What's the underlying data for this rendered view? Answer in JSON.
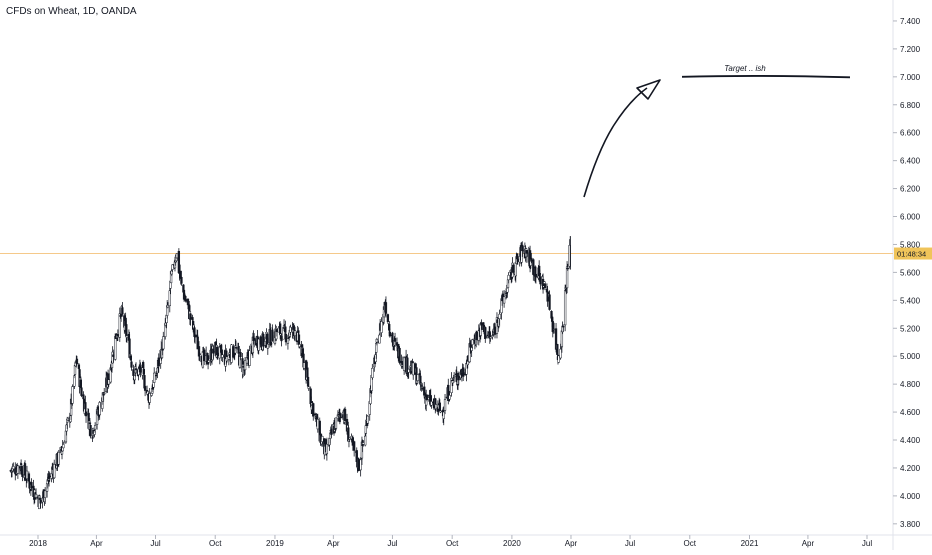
{
  "header": {
    "title": "CFDs on Wheat, 1D, OANDA"
  },
  "price_label": {
    "time": "01:48:34",
    "value": 5.735,
    "color": "#f0c45a",
    "line_color": "#f5c98a"
  },
  "annotation": {
    "text": "Target .. ish",
    "level": 7.0
  },
  "chart_data": {
    "type": "candlestick",
    "title": "CFDs on Wheat, 1D, OANDA",
    "ylim": [
      3.72,
      7.55
    ],
    "yticks": [
      3.8,
      4.0,
      4.2,
      4.4,
      4.6,
      4.8,
      5.0,
      5.2,
      5.4,
      5.6,
      5.8,
      6.0,
      6.2,
      6.4,
      6.6,
      6.8,
      7.0,
      7.2,
      7.4
    ],
    "ytick_labels": [
      "3.800",
      "4.000",
      "4.200",
      "4.400",
      "4.600",
      "4.800",
      "5.000",
      "5.200",
      "5.400",
      "5.600",
      "5.800",
      "6.000",
      "6.200",
      "6.400",
      "6.600",
      "6.800",
      "7.000",
      "7.200",
      "7.400"
    ],
    "xtick_labels": [
      "2018",
      "Apr",
      "Jul",
      "Oct",
      "2019",
      "Apr",
      "Jul",
      "Oct",
      "2020",
      "Apr",
      "Jul",
      "Oct",
      "2021",
      "Apr",
      "Jul"
    ],
    "xticks": [
      "2018-01",
      "2018-04",
      "2018-07",
      "2018-10",
      "2019-01",
      "2019-04",
      "2019-07",
      "2019-10",
      "2020-01",
      "2020-04",
      "2020-07",
      "2020-10",
      "2021-01",
      "2021-04",
      "2021-07"
    ],
    "price_path": [
      [
        "2017-11-20",
        4.18
      ],
      [
        "2017-12-05",
        4.22
      ],
      [
        "2017-12-20",
        4.08
      ],
      [
        "2018-01-05",
        3.95
      ],
      [
        "2018-01-20",
        4.15
      ],
      [
        "2018-02-05",
        4.3
      ],
      [
        "2018-02-20",
        4.6
      ],
      [
        "2018-03-01",
        4.98
      ],
      [
        "2018-03-10",
        4.72
      ],
      [
        "2018-03-25",
        4.45
      ],
      [
        "2018-04-05",
        4.62
      ],
      [
        "2018-04-20",
        4.85
      ],
      [
        "2018-05-01",
        5.15
      ],
      [
        "2018-05-10",
        5.3
      ],
      [
        "2018-05-20",
        5.1
      ],
      [
        "2018-05-28",
        4.88
      ],
      [
        "2018-06-10",
        4.9
      ],
      [
        "2018-06-20",
        4.7
      ],
      [
        "2018-07-01",
        4.85
      ],
      [
        "2018-07-15",
        5.15
      ],
      [
        "2018-07-25",
        5.55
      ],
      [
        "2018-08-02",
        5.75
      ],
      [
        "2018-08-10",
        5.5
      ],
      [
        "2018-08-20",
        5.35
      ],
      [
        "2018-09-01",
        5.12
      ],
      [
        "2018-09-15",
        4.95
      ],
      [
        "2018-10-01",
        5.05
      ],
      [
        "2018-10-15",
        4.98
      ],
      [
        "2018-11-01",
        5.05
      ],
      [
        "2018-11-15",
        4.9
      ],
      [
        "2018-12-01",
        5.12
      ],
      [
        "2018-12-15",
        5.1
      ],
      [
        "2019-01-05",
        5.18
      ],
      [
        "2019-01-20",
        5.15
      ],
      [
        "2019-02-01",
        5.2
      ],
      [
        "2019-02-15",
        4.95
      ],
      [
        "2019-02-25",
        4.7
      ],
      [
        "2019-03-10",
        4.45
      ],
      [
        "2019-03-20",
        4.3
      ],
      [
        "2019-04-01",
        4.48
      ],
      [
        "2019-04-15",
        4.62
      ],
      [
        "2019-04-25",
        4.42
      ],
      [
        "2019-05-10",
        4.22
      ],
      [
        "2019-05-20",
        4.45
      ],
      [
        "2019-06-01",
        4.9
      ],
      [
        "2019-06-10",
        5.15
      ],
      [
        "2019-06-20",
        5.38
      ],
      [
        "2019-07-01",
        5.1
      ],
      [
        "2019-07-20",
        4.95
      ],
      [
        "2019-08-05",
        4.88
      ],
      [
        "2019-08-20",
        4.72
      ],
      [
        "2019-09-01",
        4.65
      ],
      [
        "2019-09-15",
        4.6
      ],
      [
        "2019-10-01",
        4.82
      ],
      [
        "2019-10-20",
        4.9
      ],
      [
        "2019-11-01",
        5.1
      ],
      [
        "2019-11-15",
        5.2
      ],
      [
        "2019-12-01",
        5.12
      ],
      [
        "2019-12-15",
        5.35
      ],
      [
        "2020-01-01",
        5.6
      ],
      [
        "2020-01-20",
        5.78
      ],
      [
        "2020-02-01",
        5.65
      ],
      [
        "2020-02-15",
        5.55
      ],
      [
        "2020-02-25",
        5.45
      ],
      [
        "2020-03-05",
        5.2
      ],
      [
        "2020-03-12",
        5.0
      ],
      [
        "2020-03-18",
        5.15
      ],
      [
        "2020-03-24",
        5.5
      ],
      [
        "2020-03-30",
        5.78
      ]
    ],
    "last_price": 5.735
  }
}
